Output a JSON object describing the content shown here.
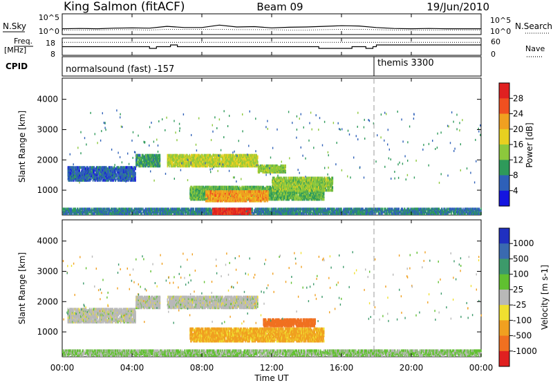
{
  "header": {
    "station": "King Salmon (fitACF)",
    "beam": "Beam 09",
    "date": "19/Jun/2010"
  },
  "strip_labels": {
    "nsky": "N.Sky",
    "nsearch": "N.Search",
    "freq_line1": "Freq.",
    "freq_line2": "[MHz]",
    "nave": "Nave",
    "cpid": "CPID"
  },
  "noise_axis_ticks": [
    "10^5",
    "10^0"
  ],
  "freq_axis_ticks": [
    "18",
    "8"
  ],
  "nave_axis_ticks": [
    "60",
    "0"
  ],
  "cpid_segments": [
    {
      "label": "normalsound (fast) -157",
      "start_hour": 0
    },
    {
      "label": "themis 3300",
      "start_hour": 18
    }
  ],
  "time_ticks": [
    "00:00",
    "04:00",
    "08:00",
    "12:00",
    "16:00",
    "20:00",
    "00:00"
  ],
  "x_axis_label": "Time UT",
  "power_legend": {
    "label": "Power [dB]",
    "ticks": [
      "28",
      "24",
      "20",
      "16",
      "12",
      "8",
      "4"
    ],
    "colors": [
      "#e02020",
      "#f05020",
      "#f0a020",
      "#e8d020",
      "#8cc83c",
      "#2e9a5a",
      "#2e60b8",
      "#1414e0"
    ]
  },
  "velocity_legend": {
    "label": "Velocity [m s-1]",
    "ticks": [
      "1000",
      "500",
      "100",
      "25",
      "-25",
      "-100",
      "-500",
      "-1000"
    ],
    "colors": [
      "#2030c0",
      "#3a6ab0",
      "#3c9a6a",
      "#60c030",
      "#b8b8b8",
      "#f0e030",
      "#f0a020",
      "#f07020",
      "#e02020"
    ]
  },
  "chart_data": [
    {
      "type": "line",
      "title": "N.Sky / N.Search",
      "ylim_log10": [
        0,
        5
      ],
      "x_hours": [
        0,
        1,
        2,
        3,
        4,
        5,
        6,
        7,
        8,
        9,
        10,
        11,
        12,
        13,
        14,
        15,
        16,
        17,
        18,
        19,
        20,
        21,
        22,
        23,
        24
      ],
      "series": [
        {
          "name": "N.Sky",
          "log10_values": [
            1.0,
            1.1,
            1.0,
            1.2,
            1.3,
            1.2,
            1.8,
            1.4,
            1.4,
            2.2,
            1.6,
            1.7,
            1.3,
            1.5,
            1.6,
            1.8,
            2.0,
            1.9,
            1.4,
            1.1,
            1.0,
            1.1,
            1.0,
            1.0,
            1.0
          ]
        },
        {
          "name": "N.Search",
          "log10_values": [
            0.6,
            0.6,
            0.6,
            0.7,
            0.7,
            0.6,
            0.8,
            0.8,
            0.8,
            0.8,
            0.7,
            0.7,
            0.7,
            0.6,
            0.6,
            0.7,
            0.8,
            0.8,
            0.7,
            0.6,
            0.6,
            0.6,
            0.6,
            0.6,
            0.6
          ]
        }
      ]
    },
    {
      "type": "line",
      "title": "Freq. [MHz] / Nave",
      "ylim": [
        8,
        18
      ],
      "nave_ylim": [
        0,
        60
      ],
      "x_hours": [
        0,
        5.0,
        5.0,
        5.4,
        5.4,
        6.2,
        6.2,
        6.6,
        6.6,
        14.7,
        14.7,
        16.6,
        16.6,
        17.4,
        17.4,
        17.8,
        17.8,
        18.0,
        18.0,
        24.0
      ],
      "series": [
        {
          "name": "Freq.",
          "values": [
            13,
            13,
            12,
            12,
            13,
            13,
            14,
            14,
            13,
            13,
            12,
            12,
            13,
            13,
            12,
            12,
            13,
            13,
            14,
            14
          ]
        },
        {
          "name": "Nave",
          "values": [
            45,
            45,
            45,
            45,
            45,
            45,
            45,
            45,
            45,
            45,
            45,
            45,
            45,
            45,
            45,
            45,
            45,
            45,
            45,
            45
          ]
        }
      ]
    },
    {
      "type": "heatmap",
      "title": "Power [dB]",
      "xlabel": "",
      "ylabel": "Slant Range [km]",
      "xlim_hours": [
        0,
        24
      ],
      "ylim": [
        180,
        4700
      ],
      "yticks": [
        1000,
        2000,
        3000,
        4000
      ],
      "color_scale": [
        0,
        30
      ],
      "regions": [
        {
          "t0": 0.3,
          "t1": 4.2,
          "r0": 1280,
          "r1": 1750,
          "value": 6
        },
        {
          "t0": 4.2,
          "t1": 5.6,
          "r0": 1750,
          "r1": 2150,
          "value": 10
        },
        {
          "t0": 6.0,
          "t1": 11.2,
          "r0": 1750,
          "r1": 2150,
          "value": 16
        },
        {
          "t0": 11.2,
          "t1": 12.8,
          "r0": 1550,
          "r1": 1800,
          "value": 14
        },
        {
          "t0": 7.3,
          "t1": 15.0,
          "r0": 650,
          "r1": 1100,
          "value": 12
        },
        {
          "t0": 12.0,
          "t1": 15.5,
          "r0": 950,
          "r1": 1400,
          "value": 14
        },
        {
          "t0": 8.2,
          "t1": 11.8,
          "r0": 600,
          "r1": 950,
          "value": 22
        },
        {
          "t0": 0.0,
          "t1": 24.0,
          "r0": 180,
          "r1": 380,
          "value": 8
        },
        {
          "t0": 8.6,
          "t1": 10.8,
          "r0": 180,
          "r1": 380,
          "value": 29
        }
      ]
    },
    {
      "type": "heatmap",
      "title": "Velocity [m s-1]",
      "xlabel": "Time UT",
      "ylabel": "Slant Range [km]",
      "xlim_hours": [
        0,
        24
      ],
      "ylim": [
        180,
        4700
      ],
      "yticks": [
        1000,
        2000,
        3000,
        4000
      ],
      "regions": [
        {
          "t0": 0.3,
          "t1": 4.2,
          "r0": 1280,
          "r1": 1750,
          "value": 0
        },
        {
          "t0": 4.2,
          "t1": 5.6,
          "r0": 1750,
          "r1": 2150,
          "value": 0
        },
        {
          "t0": 6.0,
          "t1": 11.2,
          "r0": 1750,
          "r1": 2150,
          "value": 0
        },
        {
          "t0": 7.3,
          "t1": 15.0,
          "r0": 650,
          "r1": 1100,
          "value": -75
        },
        {
          "t0": 11.5,
          "t1": 14.5,
          "r0": 1150,
          "r1": 1400,
          "value": -600
        },
        {
          "t0": 0.0,
          "t1": 24.0,
          "r0": 180,
          "r1": 380,
          "value": 30
        }
      ]
    }
  ]
}
